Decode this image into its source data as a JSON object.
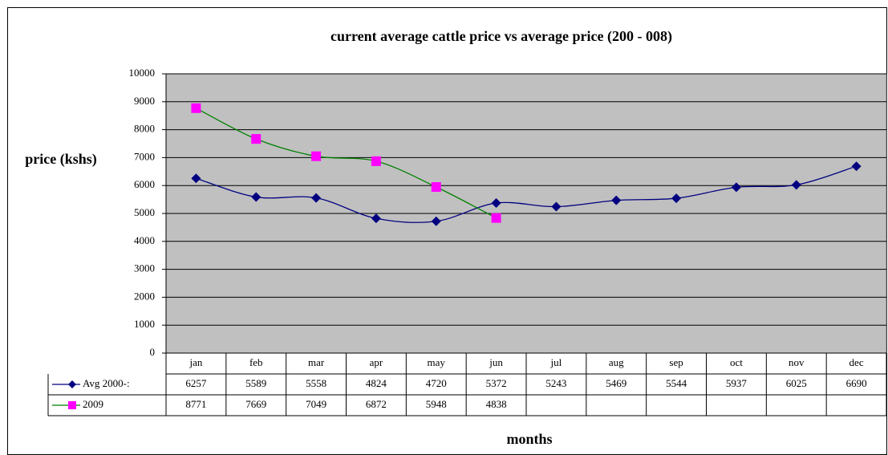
{
  "chart_data": {
    "type": "line",
    "title": "current average cattle price vs average price (200 - 008)",
    "y_label": "price (kshs)",
    "x_label": "months",
    "categories": [
      "jan",
      "feb",
      "mar",
      "apr",
      "may",
      "jun",
      "jul",
      "aug",
      "sep",
      "oct",
      "nov",
      "dec"
    ],
    "series": [
      {
        "name": "Avg 2000-:",
        "color": "#000080",
        "marker_color": "#000080",
        "marker": "diamond",
        "values": [
          6257,
          5589,
          5558,
          4824,
          4720,
          5372,
          5243,
          5469,
          5544,
          5937,
          6025,
          6690
        ]
      },
      {
        "name": "2009",
        "color": "#008000",
        "marker_color": "#ff00ff",
        "marker": "square",
        "values": [
          8771,
          7669,
          7049,
          6872,
          5948,
          4838,
          null,
          null,
          null,
          null,
          null,
          null
        ]
      }
    ],
    "ylim": [
      0,
      10000
    ],
    "yticks": [
      0,
      1000,
      2000,
      3000,
      4000,
      5000,
      6000,
      7000,
      8000,
      9000,
      10000
    ],
    "grid": true,
    "plot_background": "#c0c0c0",
    "data_table": true
  }
}
